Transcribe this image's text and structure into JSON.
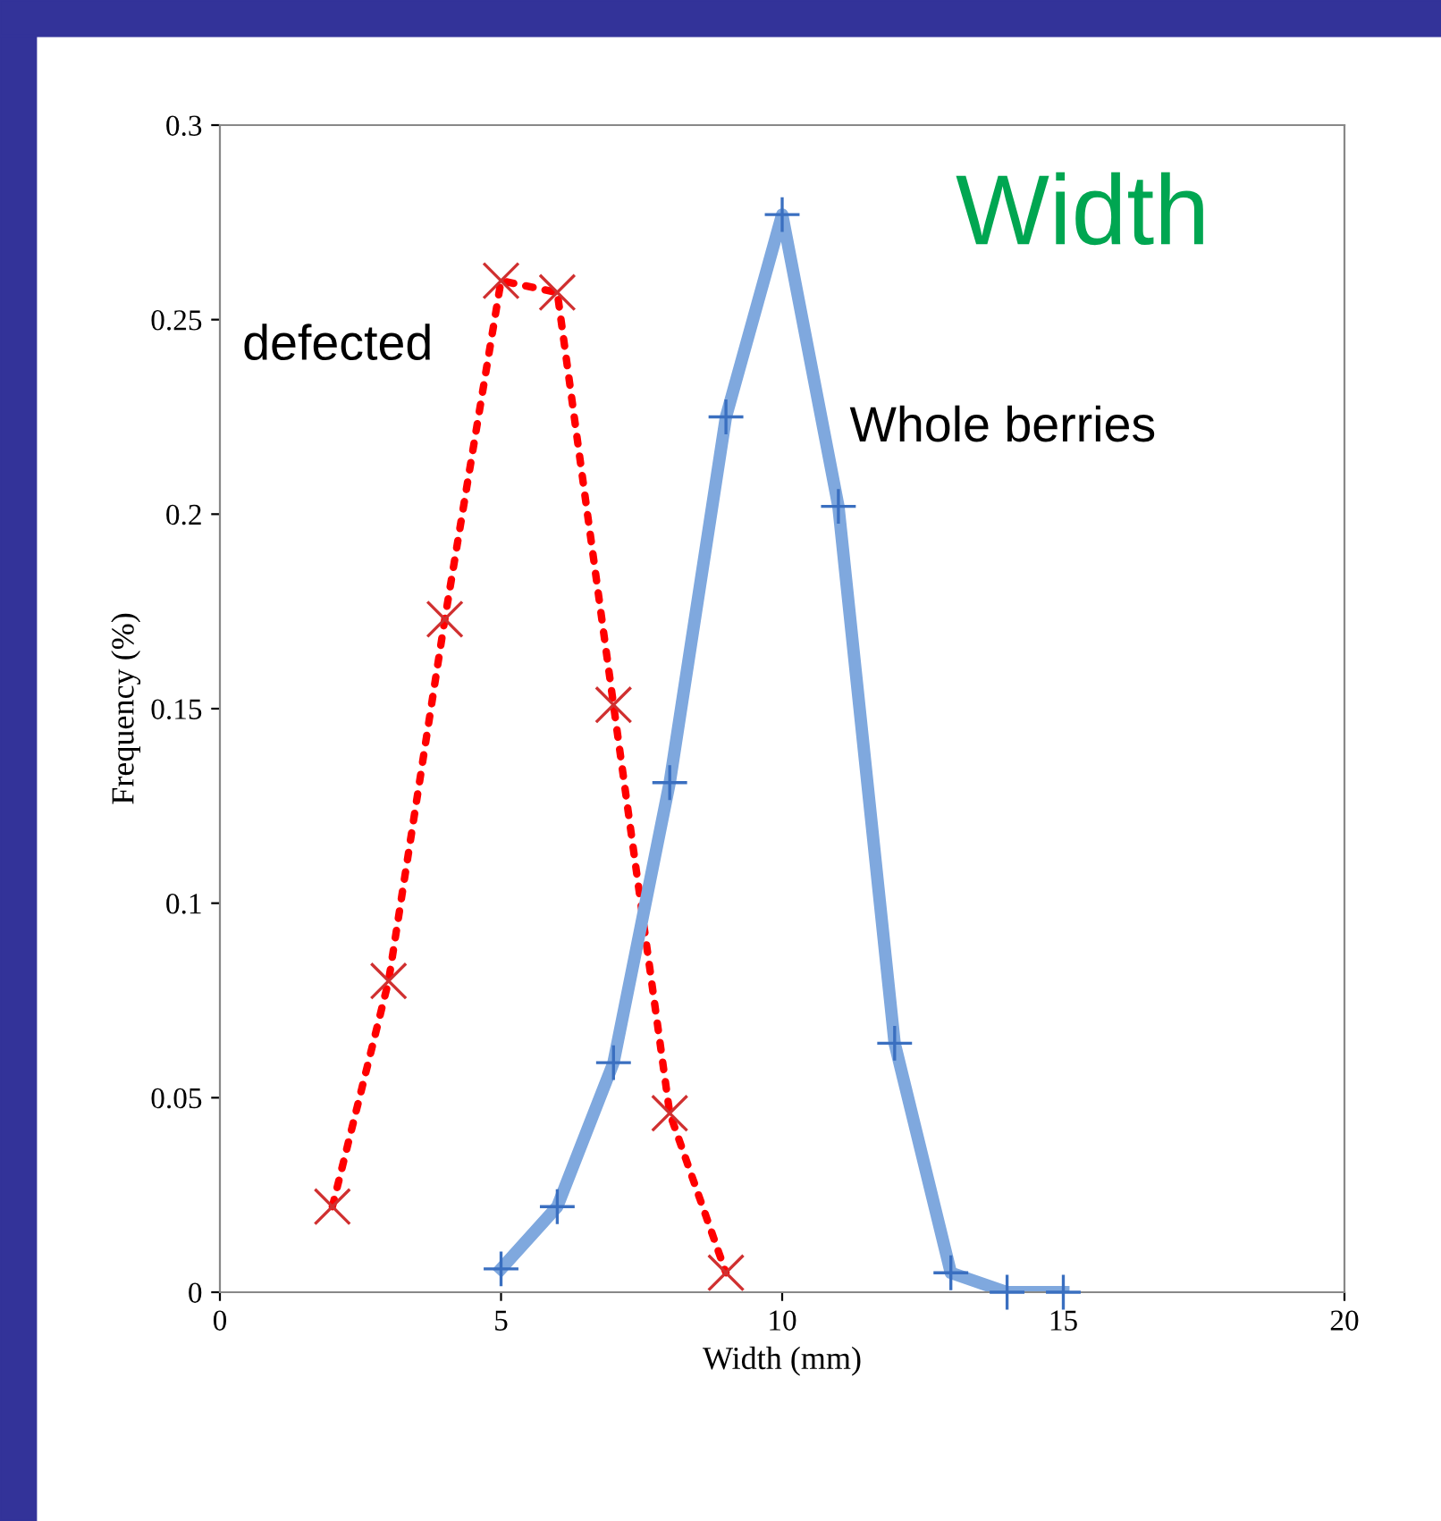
{
  "chart_data": {
    "type": "line",
    "title": "Width",
    "xlabel": "Width (mm)",
    "ylabel": "Frequency (%)",
    "xlim": [
      0,
      20
    ],
    "xticks": [
      0,
      5,
      10,
      15,
      20
    ],
    "ylim": [
      0,
      0.3
    ],
    "yticks": [
      0,
      0.05,
      0.1,
      0.15,
      0.2,
      0.25,
      0.3
    ],
    "grid": false,
    "legend": false,
    "series": [
      {
        "name": "defected",
        "color": "#ff0000",
        "marker": "cross",
        "line_style": "dotted",
        "x": [
          2,
          3,
          4,
          5,
          6,
          7,
          8,
          9
        ],
        "values": [
          0.022,
          0.08,
          0.173,
          0.26,
          0.257,
          0.151,
          0.046,
          0.005
        ]
      },
      {
        "name": "Whole berries",
        "color": "#7fa8de",
        "marker": "plus",
        "line_style": "solid",
        "x": [
          5,
          6,
          7,
          8,
          9,
          10,
          11,
          12,
          13,
          14,
          15
        ],
        "values": [
          0.006,
          0.022,
          0.059,
          0.131,
          0.225,
          0.277,
          0.202,
          0.064,
          0.005,
          0,
          0
        ]
      }
    ]
  }
}
